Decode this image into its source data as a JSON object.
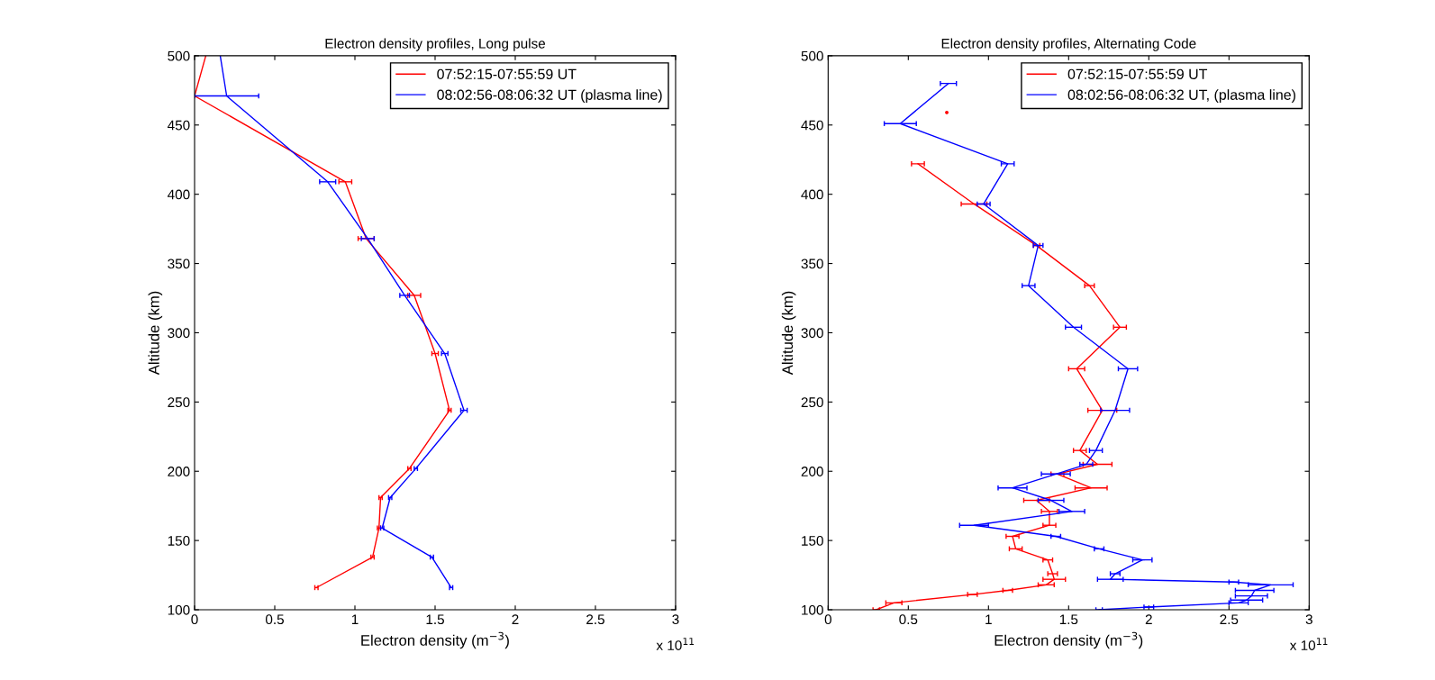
{
  "chart_data": [
    {
      "type": "line",
      "title": "Electron density profiles, Long pulse",
      "xlabel": "Electron density (m$^{−3}$)",
      "ylabel": "Altitude (km)",
      "annotations": [
        "x 10$^{11}$"
      ],
      "xlim": [
        0,
        3
      ],
      "xticks": [
        0,
        0.5,
        1,
        1.5,
        2,
        2.5,
        3
      ],
      "ylim": [
        100,
        500
      ],
      "yticks": [
        100,
        150,
        200,
        250,
        300,
        350,
        400,
        450,
        500
      ],
      "grid": false,
      "legend": "top right",
      "marker": "none",
      "line_style": "solid",
      "series": [
        {
          "name": "07:52:15-07:55:59 UT",
          "color": "#ff0000",
          "x": [
            0.07,
            0,
            0.94,
            1.07,
            1.37,
            1.5,
            1.59,
            1.34,
            1.16,
            1.15,
            1.11,
            0.76
          ],
          "values": [
            500,
            471,
            409,
            368,
            327,
            285,
            244,
            202,
            181,
            159,
            138,
            116
          ],
          "xerrors": [
            null,
            null,
            0.04,
            0.05,
            0.04,
            0.02,
            0.01,
            0.01,
            0.01,
            0.01,
            0.01,
            0.01
          ]
        },
        {
          "name": "08:02:56-08:06:32 UT (plasma line)",
          "color": "#0000ff",
          "x": [
            0.16,
            0.2,
            0.83,
            1.08,
            1.31,
            1.56,
            1.68,
            1.38,
            1.22,
            1.17,
            1.48,
            1.6
          ],
          "values": [
            500,
            471,
            409,
            368,
            327,
            285,
            244,
            202,
            181,
            159,
            138,
            116
          ],
          "xerrors": [
            null,
            0.2,
            0.05,
            0.04,
            0.03,
            0.02,
            0.02,
            0.01,
            0.01,
            0.01,
            0.01,
            0.01
          ]
        }
      ]
    },
    {
      "type": "line",
      "title": "Electron density profiles, Alternating Code",
      "xlabel": "Electron density (m$^{−3}$)",
      "ylabel": "Altitude (km)",
      "annotations": [
        "x 10$^{11}$"
      ],
      "xlim": [
        0,
        3
      ],
      "xticks": [
        0,
        0.5,
        1,
        1.5,
        2,
        2.5,
        3
      ],
      "ylim": [
        100,
        500
      ],
      "yticks": [
        100,
        150,
        200,
        250,
        300,
        350,
        400,
        450,
        500
      ],
      "grid": false,
      "legend": "top right",
      "marker": "none",
      "line_style": "solid",
      "series": [
        {
          "name": "07:52:15-07:55:59 UT",
          "color": "#ff0000",
          "x": [
            0.56,
            0.91,
            1.3,
            1.63,
            1.82,
            1.55,
            1.71,
            1.57,
            1.68,
            1.43,
            1.64,
            1.3,
            1.38,
            1.38,
            1.15,
            1.17,
            1.37,
            1.4,
            1.41,
            1.36,
            1.12,
            0.9,
            0.41,
            0.3
          ],
          "values": [
            422,
            393,
            363,
            334,
            304,
            274,
            244,
            215,
            205,
            198,
            188,
            179,
            171,
            161,
            153,
            144,
            136,
            126,
            122,
            118,
            114,
            111,
            105,
            100
          ],
          "xerrors": [
            0.04,
            0.08,
            0.02,
            0.03,
            0.04,
            0.05,
            0.09,
            0.04,
            0.09,
            0.04,
            0.1,
            0.08,
            0.05,
            0.04,
            0.04,
            0.04,
            0.03,
            0.03,
            0.07,
            0.05,
            0.03,
            0.03,
            0.05,
            0.02
          ]
        },
        {
          "color": "#ff0000",
          "type": "scatter",
          "x": [
            0.74
          ],
          "values": [
            459
          ]
        },
        {
          "name": "08:02:56-08:06:32 UT, (plasma line)",
          "color": "#0000ff",
          "x": [
            0.75,
            0.45,
            1.12,
            0.97,
            1.31,
            1.25,
            1.53,
            1.87,
            1.79,
            1.67,
            1.61,
            1.42,
            1.15,
            1.39,
            1.52,
            0.91,
            1.42,
            1.69,
            1.96,
            1.79,
            1.76,
            2.53,
            2.76,
            2.66,
            2.64,
            2.61,
            2.56,
            2.0,
            1.69
          ],
          "values": [
            480,
            451,
            422,
            393,
            363,
            334,
            304,
            274,
            244,
            215,
            205,
            198,
            188,
            179,
            171,
            161,
            153,
            144,
            136,
            126,
            122,
            120,
            118,
            114,
            110,
            107,
            105,
            102,
            100
          ],
          "xerrors": [
            0.05,
            0.1,
            0.04,
            0.04,
            0.03,
            0.04,
            0.05,
            0.06,
            0.09,
            0.04,
            0.04,
            0.09,
            0.09,
            0.08,
            0.08,
            0.09,
            0.03,
            0.03,
            0.06,
            0.03,
            0.08,
            0.03,
            0.14,
            0.12,
            0.1,
            0.1,
            0.06,
            0.03,
            0.02
          ]
        }
      ]
    }
  ]
}
